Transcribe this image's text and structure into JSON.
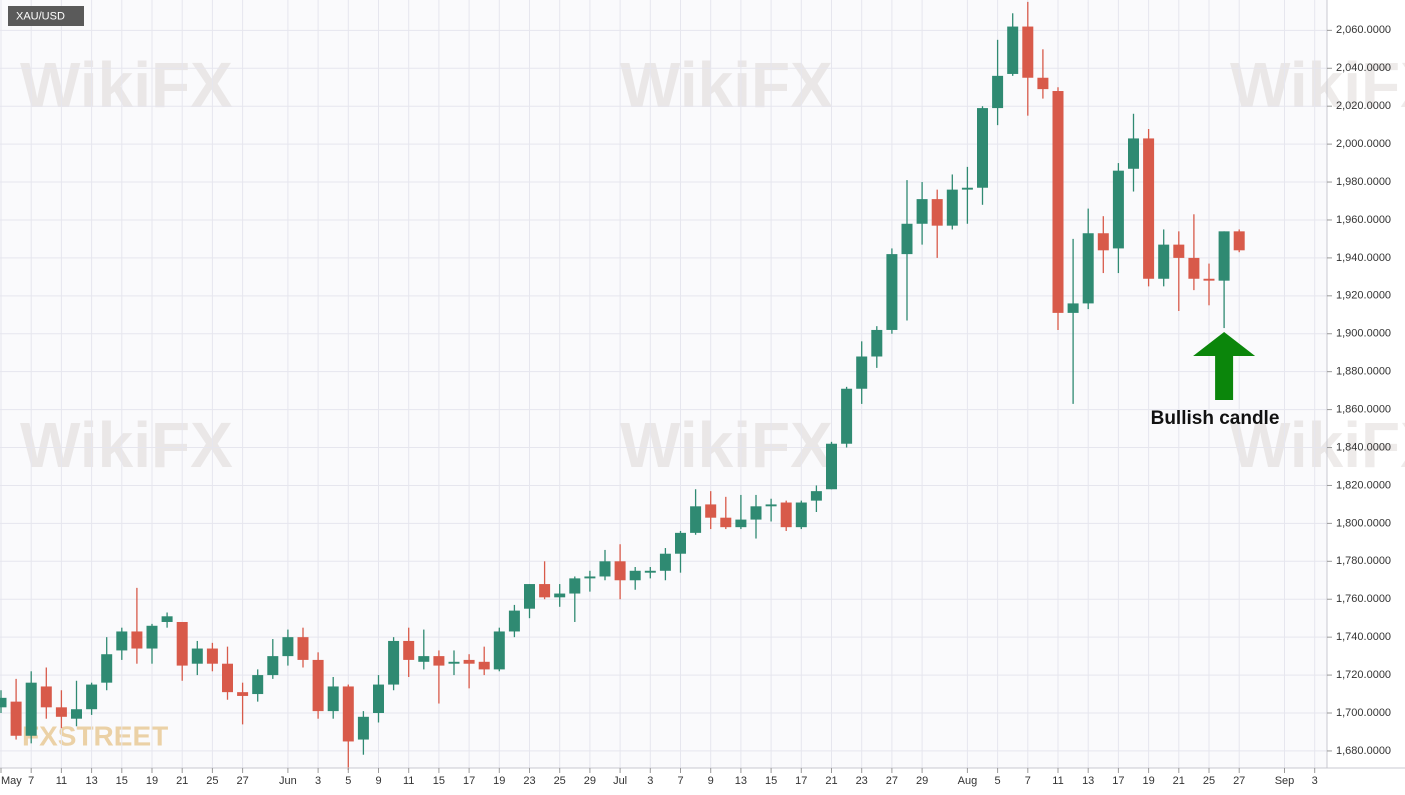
{
  "chart_data": {
    "type": "candlestick",
    "title": "XAU/USD",
    "annotation": "Bullish candle",
    "watermark": "WikiFX",
    "logo": "FXSTREET",
    "up_color": "#2f8a72",
    "down_color": "#d85a4a",
    "arrow_color": "#0b860b",
    "grid": true,
    "annotation_index": 81,
    "categories": [
      "May",
      null,
      "7",
      null,
      "11",
      null,
      "13",
      null,
      "15",
      null,
      "19",
      null,
      "21",
      null,
      "25",
      null,
      "27",
      null,
      null,
      "Jun",
      null,
      "3",
      null,
      "5",
      null,
      "9",
      null,
      "11",
      null,
      "15",
      null,
      "17",
      null,
      "19",
      null,
      "23",
      null,
      "25",
      null,
      "29",
      null,
      "Jul",
      null,
      "3",
      null,
      "7",
      null,
      "9",
      null,
      "13",
      null,
      "15",
      null,
      "17",
      null,
      "21",
      null,
      "23",
      null,
      "27",
      null,
      "29",
      null,
      null,
      "Aug",
      null,
      "5",
      null,
      "7",
      null,
      "11",
      null,
      "13",
      null,
      "17",
      null,
      "19",
      null,
      "21",
      null,
      "25",
      null,
      "27",
      null,
      null,
      "Sep",
      null,
      "3"
    ],
    "open": [
      1703,
      1706,
      1688,
      1714,
      1703,
      1697,
      1702,
      1716,
      1733,
      1743,
      1734,
      1748,
      1748,
      1726,
      1734,
      1726,
      1711,
      1710,
      1720,
      1730,
      1740,
      1728,
      1701,
      1714,
      1686,
      1700,
      1715,
      1738,
      1727,
      1730,
      1726,
      1728,
      1727,
      1723,
      1743,
      1755,
      1768,
      1761,
      1763,
      1771,
      1772,
      1780,
      1770,
      1774,
      1775,
      1784,
      1795,
      1810,
      1803,
      1798,
      1802,
      1809,
      1811,
      1798,
      1812,
      1818,
      1842,
      1871,
      1888,
      1902,
      1942,
      1958,
      1971,
      1957,
      1976,
      1977,
      2019,
      2037,
      2062,
      2035,
      2028,
      1911,
      1916,
      1953,
      1945,
      1987,
      2003,
      1929,
      1947,
      1940,
      1929,
      1928,
      1954,
      null,
      null,
      null,
      null,
      null
    ],
    "high": [
      1712,
      1718,
      1722,
      1724,
      1712,
      1717,
      1716,
      1740,
      1745,
      1766,
      1747,
      1753,
      1748,
      1738,
      1737,
      1735,
      1716,
      1723,
      1739,
      1744,
      1745,
      1732,
      1719,
      1715,
      1701,
      1720,
      1740,
      1745,
      1744,
      1733,
      1733,
      1731,
      1735,
      1745,
      1757,
      1768,
      1780,
      1768,
      1772,
      1775,
      1786,
      1789,
      1777,
      1777,
      1787,
      1796,
      1818,
      1817,
      1814,
      1815,
      1815,
      1813,
      1812,
      1812,
      1820,
      1843,
      1872,
      1896,
      1904,
      1945,
      1981,
      1980,
      1976,
      1984,
      1988,
      2020,
      2055,
      2069,
      2075,
      2050,
      2030,
      1950,
      1966,
      1962,
      1990,
      2016,
      2008,
      1955,
      1954,
      1963,
      1937,
      1954,
      1955,
      null,
      null,
      null,
      null,
      null
    ],
    "low": [
      1700,
      1686,
      1684,
      1697,
      1692,
      1693,
      1699,
      1712,
      1728,
      1726,
      1726,
      1745,
      1717,
      1720,
      1722,
      1707,
      1694,
      1706,
      1718,
      1725,
      1724,
      1697,
      1697,
      1670,
      1678,
      1695,
      1712,
      1719,
      1723,
      1705,
      1720,
      1713,
      1720,
      1722,
      1740,
      1750,
      1760,
      1756,
      1748,
      1764,
      1770,
      1760,
      1765,
      1771,
      1770,
      1774,
      1794,
      1797,
      1797,
      1797,
      1792,
      1801,
      1796,
      1797,
      1806,
      1818,
      1840,
      1863,
      1882,
      1900,
      1907,
      1947,
      1940,
      1955,
      1958,
      1968,
      2010,
      2036,
      2015,
      2024,
      1902,
      1863,
      1913,
      1932,
      1932,
      1975,
      1925,
      1925,
      1912,
      1923,
      1915,
      1903,
      1943,
      null,
      null,
      null,
      null,
      null
    ],
    "close": [
      1708,
      1688,
      1716,
      1703,
      1698,
      1702,
      1715,
      1731,
      1743,
      1734,
      1746,
      1751,
      1725,
      1734,
      1726,
      1711,
      1709,
      1720,
      1730,
      1740,
      1728,
      1701,
      1714,
      1685,
      1698,
      1715,
      1738,
      1728,
      1730,
      1725,
      1727,
      1726,
      1723,
      1743,
      1754,
      1768,
      1761,
      1763,
      1771,
      1772,
      1780,
      1770,
      1775,
      1775,
      1784,
      1795,
      1809,
      1803,
      1798,
      1802,
      1809,
      1810,
      1798,
      1811,
      1817,
      1842,
      1871,
      1888,
      1902,
      1942,
      1958,
      1971,
      1957,
      1976,
      1977,
      2019,
      2036,
      2062,
      2035,
      2029,
      1911,
      1916,
      1953,
      1944,
      1986,
      2003,
      1929,
      1947,
      1940,
      1929,
      1928,
      1954,
      1944,
      null,
      null,
      null,
      null,
      null
    ],
    "ylim": [
      1671,
      2076
    ],
    "yticks": [
      {
        "value": 1680,
        "label": "1,680.0000"
      },
      {
        "value": 1700,
        "label": "1,700.0000"
      },
      {
        "value": 1720,
        "label": "1,720.0000"
      },
      {
        "value": 1740,
        "label": "1,740.0000"
      },
      {
        "value": 1760,
        "label": "1,760.0000"
      },
      {
        "value": 1780,
        "label": "1,780.0000"
      },
      {
        "value": 1800,
        "label": "1,800.0000"
      },
      {
        "value": 1820,
        "label": "1,820.0000"
      },
      {
        "value": 1840,
        "label": "1,840.0000"
      },
      {
        "value": 1860,
        "label": "1,860.0000"
      },
      {
        "value": 1880,
        "label": "1,880.0000"
      },
      {
        "value": 1900,
        "label": "1,900.0000"
      },
      {
        "value": 1920,
        "label": "1,920.0000"
      },
      {
        "value": 1940,
        "label": "1,940.0000"
      },
      {
        "value": 1960,
        "label": "1,960.0000"
      },
      {
        "value": 1980,
        "label": "1,980.0000"
      },
      {
        "value": 2000,
        "label": "2,000.0000"
      },
      {
        "value": 2020,
        "label": "2,020.0000"
      },
      {
        "value": 2040,
        "label": "2,040.0000"
      },
      {
        "value": 2060,
        "label": "2,060.0000"
      }
    ]
  }
}
